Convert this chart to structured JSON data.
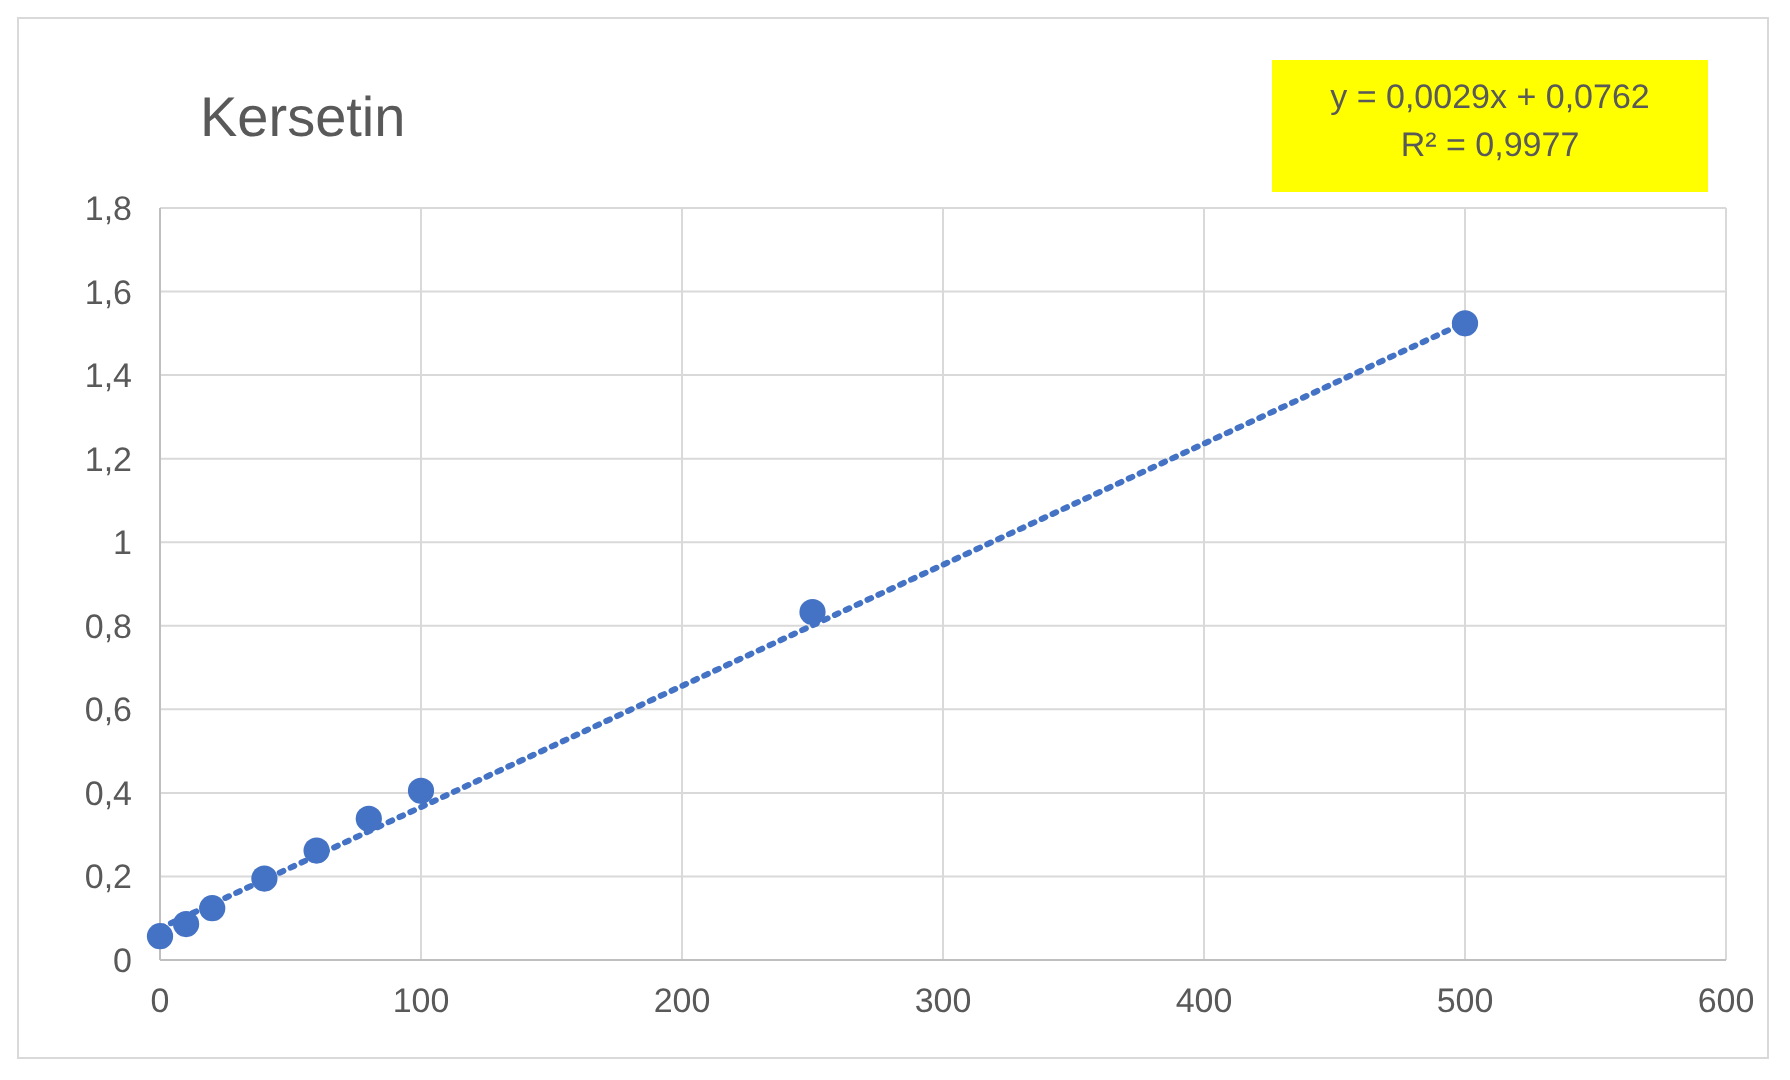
{
  "chart_data": {
    "type": "scatter",
    "title": "Kersetin",
    "series": [
      {
        "color": "#4472c4",
        "marker": "circle",
        "x": [
          0,
          10,
          20,
          40,
          60,
          80,
          100,
          250,
          500
        ],
        "values": [
          0.057,
          0.086,
          0.124,
          0.195,
          0.262,
          0.338,
          0.405,
          0.833,
          1.524
        ]
      },
      {
        "type": "line",
        "color": "#4472c4",
        "line_style": "dotted",
        "x": [
          0,
          500
        ],
        "values": [
          0.076,
          1.526
        ]
      }
    ],
    "annotations": [
      "y = 0,0029x + 0,0762",
      "R² = 0,9977"
    ],
    "xlim": [
      0,
      600
    ],
    "xticks": [
      0,
      100,
      200,
      300,
      400,
      500,
      600
    ],
    "ylim": [
      0,
      1.8
    ],
    "yticks": [
      0,
      {
        "value": 0.2,
        "label": "0,2"
      },
      {
        "value": 0.4,
        "label": "0,4"
      },
      {
        "value": 0.6,
        "label": "0,6"
      },
      {
        "value": 0.8,
        "label": "0,8"
      },
      1,
      {
        "value": 1.2,
        "label": "1,2"
      },
      {
        "value": 1.4,
        "label": "1,4"
      },
      {
        "value": 1.6,
        "label": "1,6"
      },
      {
        "value": 1.8,
        "label": "1,8"
      }
    ],
    "grid": true
  }
}
